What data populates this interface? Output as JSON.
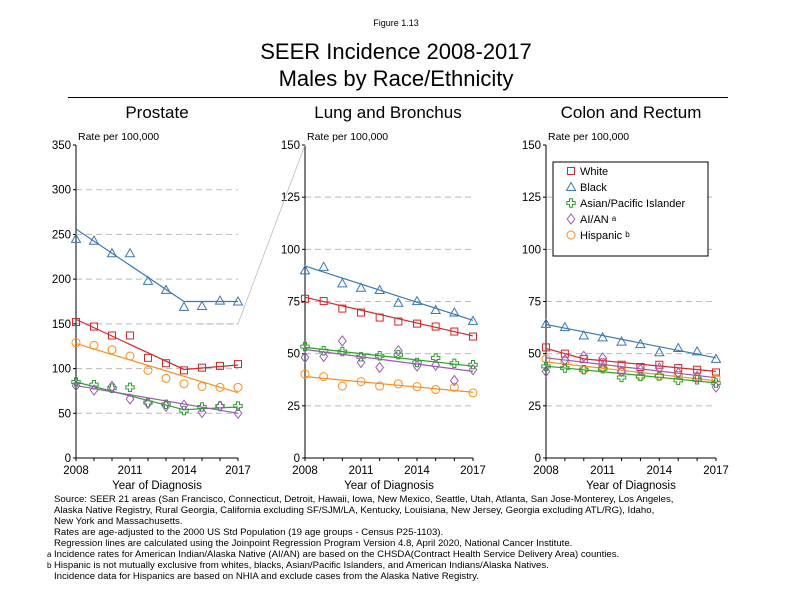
{
  "header": {
    "figure_label": "Figure 1.13",
    "title_line1": "SEER Incidence 2008-2017",
    "title_line2": "Males by Race/Ethnicity"
  },
  "colors": {
    "White": "#d62728",
    "Black": "#3a78b5",
    "Asian/Pacific Islander": "#2ca02c",
    "AI/AN": "#9b59b6",
    "Hispanic": "#ff8c1a"
  },
  "legend": {
    "placement": "inside-top (Colon and Rectum panel)",
    "items": [
      {
        "label": "White",
        "marker": "square",
        "sup": ""
      },
      {
        "label": "Black",
        "marker": "triangle",
        "sup": ""
      },
      {
        "label": "Asian/Pacific Islander",
        "marker": "plus",
        "sup": ""
      },
      {
        "label": "AI/AN",
        "marker": "diamond",
        "sup": "a"
      },
      {
        "label": "Hispanic",
        "marker": "circle",
        "sup": "b"
      }
    ]
  },
  "chart_data": [
    {
      "type": "line",
      "title": "Prostate",
      "xlabel": "Year of Diagnosis",
      "ylabel": "Rate per 100,000",
      "ylim": [
        0,
        350
      ],
      "yticks": [
        0,
        50,
        100,
        150,
        200,
        250,
        300,
        350
      ],
      "xticks": [
        2008,
        2011,
        2014,
        2017
      ],
      "x": [
        2008,
        2009,
        2010,
        2011,
        2012,
        2013,
        2014,
        2015,
        2016,
        2017
      ],
      "grid": "dashed horizontal",
      "series": [
        {
          "name": "White",
          "values": [
            152,
            147,
            137,
            137,
            112,
            106,
            98,
            101,
            103,
            105
          ],
          "trend": [
            [
              2008,
              155
            ],
            [
              2014,
              99
            ],
            [
              2017,
              104
            ]
          ]
        },
        {
          "name": "Black",
          "values": [
            245,
            243,
            229,
            229,
            198,
            188,
            169,
            170,
            176,
            175
          ],
          "trend": [
            [
              2008,
              256
            ],
            [
              2014,
              175
            ],
            [
              2017,
              175
            ]
          ]
        },
        {
          "name": "Asian/Pacific Islander",
          "values": [
            85,
            82,
            78,
            79,
            62,
            60,
            53,
            57,
            58,
            58
          ],
          "trend": [
            [
              2008,
              85
            ],
            [
              2014,
              54
            ],
            [
              2017,
              57
            ]
          ]
        },
        {
          "name": "AI/AN",
          "values": [
            81,
            76,
            80,
            66,
            61,
            58,
            59,
            51,
            58,
            50
          ],
          "trend": [
            [
              2008,
              81
            ],
            [
              2017,
              50
            ]
          ]
        },
        {
          "name": "Hispanic",
          "values": [
            129,
            126,
            121,
            114,
            98,
            89,
            83,
            80,
            79,
            79
          ],
          "trend": [
            [
              2008,
              128
            ],
            [
              2017,
              73
            ]
          ]
        }
      ]
    },
    {
      "type": "line",
      "title": "Lung and Bronchus",
      "xlabel": "Year of Diagnosis",
      "ylabel": "Rate per 100,000",
      "ylim": [
        0,
        150
      ],
      "yticks": [
        0,
        25,
        50,
        75,
        100,
        125,
        150
      ],
      "xticks": [
        2008,
        2011,
        2014,
        2017
      ],
      "x": [
        2008,
        2009,
        2010,
        2011,
        2012,
        2013,
        2014,
        2015,
        2016,
        2017
      ],
      "grid": "dashed horizontal",
      "series": [
        {
          "name": "White",
          "values": [
            76.3,
            75.2,
            71.6,
            69.7,
            67.3,
            65.4,
            64.4,
            63.0,
            60.6,
            58.2
          ],
          "trend": [
            [
              2008,
              77
            ],
            [
              2017,
              58.5
            ]
          ]
        },
        {
          "name": "Black",
          "values": [
            89.9,
            91.6,
            83.7,
            81.6,
            80.5,
            74.4,
            75.2,
            70.9,
            69.7,
            65.7
          ],
          "trend": [
            [
              2008,
              92
            ],
            [
              2017,
              66
            ]
          ]
        },
        {
          "name": "Asian/Pacific Islander",
          "values": [
            53.4,
            51.4,
            51.0,
            48.5,
            49.0,
            49.5,
            45.8,
            47.9,
            45.4,
            44.7
          ],
          "trend": [
            [
              2008,
              53
            ],
            [
              2017,
              44
            ]
          ]
        },
        {
          "name": "AI/AN",
          "values": [
            48.2,
            48.7,
            56.1,
            45.8,
            43.4,
            51.4,
            44.1,
            44.5,
            37.1,
            42.3
          ],
          "trend": [
            [
              2008,
              52
            ],
            [
              2017,
              41.5
            ]
          ]
        },
        {
          "name": "Hispanic",
          "values": [
            40.2,
            39.0,
            34.5,
            36.6,
            34.5,
            35.5,
            34.2,
            32.8,
            33.9,
            31.2
          ],
          "trend": [
            [
              2008,
              39
            ],
            [
              2017,
              31.5
            ]
          ]
        }
      ]
    },
    {
      "type": "line",
      "title": "Colon and Rectum",
      "xlabel": "Year of Diagnosis",
      "ylabel": "Rate per 100,000",
      "ylim": [
        0,
        150
      ],
      "yticks": [
        0,
        25,
        50,
        75,
        100,
        125,
        150
      ],
      "xticks": [
        2008,
        2011,
        2014,
        2017
      ],
      "x": [
        2008,
        2009,
        2010,
        2011,
        2012,
        2013,
        2014,
        2015,
        2016,
        2017
      ],
      "grid": "dashed horizontal",
      "series": [
        {
          "name": "White",
          "values": [
            53.0,
            50.0,
            47.4,
            45.8,
            44.7,
            43.6,
            44.7,
            43.1,
            42.3,
            41.0
          ],
          "trend": [
            [
              2008,
              52.5
            ],
            [
              2010,
              47.5
            ],
            [
              2017,
              41.5
            ]
          ]
        },
        {
          "name": "Black",
          "values": [
            64.3,
            62.7,
            58.7,
            57.8,
            55.8,
            54.6,
            50.7,
            52.7,
            51.1,
            47.5
          ],
          "trend": [
            [
              2008,
              64
            ],
            [
              2017,
              48
            ]
          ]
        },
        {
          "name": "Asian/Pacific Islander",
          "values": [
            43.9,
            43.1,
            42.3,
            42.8,
            38.6,
            39.1,
            39.4,
            37.2,
            37.5,
            35.9
          ],
          "trend": [
            [
              2008,
              44
            ],
            [
              2017,
              36
            ]
          ]
        },
        {
          "name": "AI/AN",
          "values": [
            41.5,
            47.0,
            48.7,
            47.9,
            41.5,
            42.3,
            43.1,
            40.7,
            39.1,
            34.0
          ],
          "trend": [
            [
              2008,
              48
            ],
            [
              2017,
              38.5
            ]
          ]
        },
        {
          "name": "Hispanic",
          "values": [
            47.5,
            46.3,
            42.3,
            43.6,
            41.5,
            39.1,
            39.1,
            39.6,
            38.3,
            38.3
          ],
          "trend": [
            [
              2008,
              46
            ],
            [
              2017,
              37
            ]
          ]
        }
      ]
    }
  ],
  "footnotes": {
    "source1": "Source:  SEER 21 areas (San Francisco, Connecticut, Detroit, Hawaii, Iowa, New Mexico, Seattle, Utah, Atlanta, San Jose-Monterey, Los Angeles,",
    "source2": "Alaska Native Registry, Rural Georgia, California excluding SF/SJM/LA, Kentucky, Louisiana, New Jersey, Georgia excluding ATL/RG), Idaho,",
    "source3": "New York and Massachusetts.",
    "rates": "Rates are age-adjusted to the 2000 US Std Population (19 age groups - Census P25-1103).",
    "regression": "Regression lines are calculated using the Joinpoint Regression Program Version 4.8, April 2020, National Cancer Institute.",
    "a_mark": "a",
    "a_text": "Incidence rates for American Indian/Alaska Native (AI/AN) are based on the CHSDA(Contract Health Service Delivery Area) counties.",
    "b_mark": "b",
    "b_text": "Hispanic is not mutually exclusive from whites, blacks, Asian/Pacific Islanders, and American Indians/Alaska Natives.",
    "b_text2": "Incidence data for Hispanics are based on NHIA and exclude cases from the Alaska Native Registry."
  }
}
